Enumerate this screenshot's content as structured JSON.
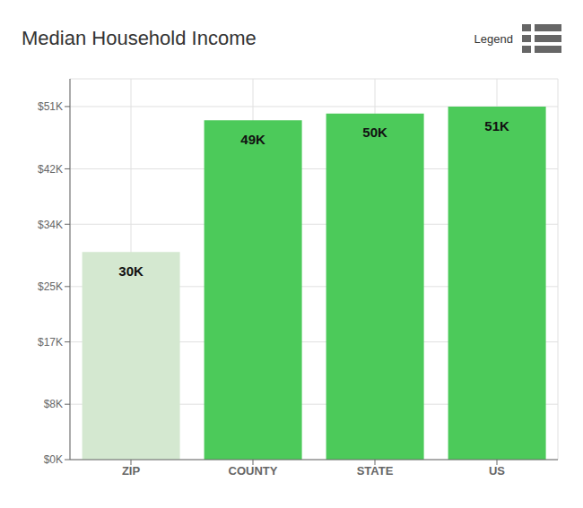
{
  "chart_data": {
    "type": "bar",
    "title": "Median Household Income",
    "annotations": [
      "Legend"
    ],
    "categories": [
      "ZIP",
      "COUNTY",
      "STATE",
      "US"
    ],
    "values": [
      30000,
      49000,
      50000,
      51000
    ],
    "value_labels": [
      "30K",
      "49K",
      "50K",
      "51K"
    ],
    "data_labels": true,
    "colors": [
      "#d4e8d0",
      "#4cca5a",
      "#4cca5a",
      "#4cca5a"
    ],
    "ylim": [
      0,
      55000
    ],
    "yticks": [
      {
        "value": 0,
        "label": "$0K"
      },
      {
        "value": 8000,
        "label": "$8K"
      },
      {
        "value": 17000,
        "label": "$17K"
      },
      {
        "value": 25000,
        "label": "$25K"
      },
      {
        "value": 34000,
        "label": "$34K"
      },
      {
        "value": 42000,
        "label": "$42K"
      },
      {
        "value": 51000,
        "label": "$51K"
      }
    ],
    "grid": true
  }
}
